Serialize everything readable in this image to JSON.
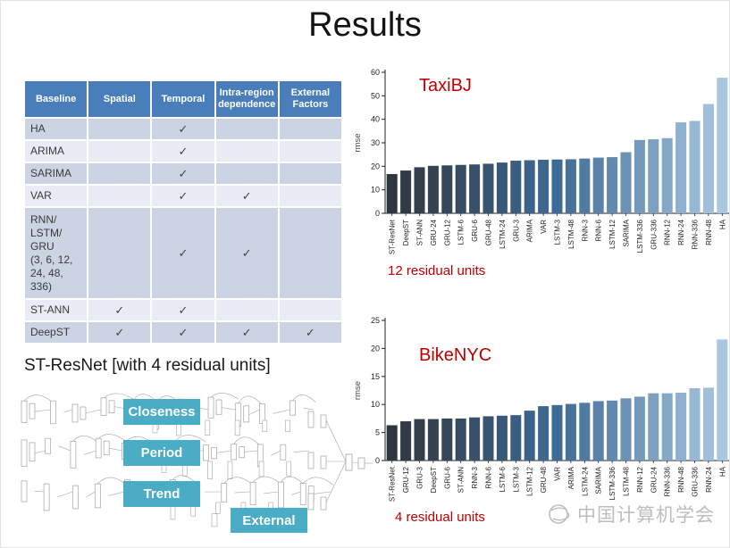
{
  "slide": {
    "title": "Results"
  },
  "table": {
    "columns": [
      "Baseline",
      "Spatial",
      "Temporal",
      "Intra-region dependence",
      "External Factors"
    ],
    "check_glyph": "✓",
    "rows": [
      {
        "label": "HA",
        "checks": [
          false,
          true,
          false,
          false
        ]
      },
      {
        "label": "ARIMA",
        "checks": [
          false,
          true,
          false,
          false
        ]
      },
      {
        "label": "SARIMA",
        "checks": [
          false,
          true,
          false,
          false
        ]
      },
      {
        "label": "VAR",
        "checks": [
          false,
          true,
          true,
          false
        ]
      },
      {
        "label": "RNN/\nLSTM/\nGRU\n(3, 6, 12,\n24, 48,\n336)",
        "checks": [
          false,
          true,
          true,
          false
        ]
      },
      {
        "label": "ST-ANN",
        "checks": [
          true,
          true,
          false,
          false
        ]
      },
      {
        "label": "DeepST",
        "checks": [
          true,
          true,
          true,
          true
        ]
      }
    ]
  },
  "diagram": {
    "title": "ST-ResNet [with 4 residual units]",
    "labels": [
      "Closeness",
      "Period",
      "Trend",
      "External"
    ],
    "accent_color": "#4bacc6"
  },
  "chart_data": [
    {
      "type": "bar",
      "title": "TaxiBJ",
      "caption": "12 residual units",
      "xlabel": "",
      "ylabel": "rmse",
      "ylim": [
        0,
        60
      ],
      "yticks": [
        0,
        10,
        20,
        30,
        40,
        50,
        60
      ],
      "grid": false,
      "legend": "none",
      "bar_gradient": [
        "#30363e",
        "#3f6a96",
        "#a9c7e0"
      ],
      "categories": [
        "ST-ResNet",
        "DeepST",
        "ST-ANN",
        "GRU-24",
        "GRU-12",
        "LSTM-6",
        "GRU-6",
        "GRU-48",
        "LSTM-24",
        "GRU-3",
        "ARIMA",
        "VAR",
        "LSTM-3",
        "LSTM-48",
        "RNN-3",
        "RNN-6",
        "LSTM-12",
        "SARIMA",
        "LSTM-336",
        "GRU-336",
        "RNN-12",
        "RNN-24",
        "RNN-336",
        "RNN-48",
        "HA"
      ],
      "values": [
        16.7,
        18.2,
        19.6,
        20.2,
        20.4,
        20.6,
        20.8,
        21.1,
        21.6,
        22.4,
        22.6,
        22.8,
        22.9,
        23.0,
        23.3,
        23.7,
        23.9,
        26.0,
        31.2,
        31.5,
        32.0,
        38.7,
        39.3,
        46.5,
        57.7
      ]
    },
    {
      "type": "bar",
      "title": "BikeNYC",
      "caption": "4 residual units",
      "xlabel": "",
      "ylabel": "rmse",
      "ylim": [
        0,
        25
      ],
      "yticks": [
        0,
        5,
        10,
        15,
        20,
        25
      ],
      "grid": false,
      "legend": "none",
      "bar_gradient": [
        "#30363e",
        "#3f6a96",
        "#a9c7e0"
      ],
      "categories": [
        "ST-ResNet",
        "GRU-12",
        "GRU-3",
        "DeepST",
        "GRU-6",
        "ST-ANN",
        "RNN-3",
        "RNN-6",
        "LSTM-6",
        "LSTM-3",
        "LSTM-12",
        "GRU-48",
        "VAR",
        "ARIMA",
        "LSTM-24",
        "SARIMA",
        "LSTM-336",
        "LSTM-48",
        "RNN-12",
        "GRU-24",
        "RNN-336",
        "RNN-48",
        "GRU-336",
        "RNN-24",
        "HA"
      ],
      "values": [
        6.3,
        7.0,
        7.4,
        7.4,
        7.5,
        7.5,
        7.7,
        7.9,
        8.0,
        8.1,
        8.9,
        9.7,
        9.9,
        10.1,
        10.3,
        10.6,
        10.7,
        11.1,
        11.4,
        12.0,
        12.0,
        12.1,
        12.9,
        13.0,
        21.6
      ]
    }
  ],
  "watermark": {
    "text": "中国计算机学会"
  },
  "colors": {
    "header_blue": "#4a7ebb",
    "row_dark": "#ccd3e3",
    "row_light": "#e9ecf4",
    "accent_red": "#c00000",
    "teal": "#4bacc6",
    "watermark_gray": "#bdbdbd"
  }
}
